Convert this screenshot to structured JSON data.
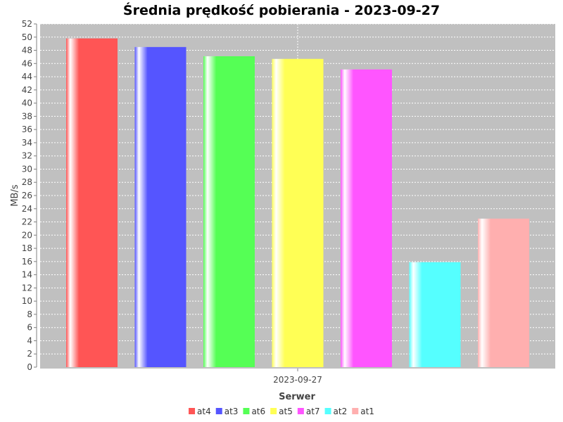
{
  "chart_data": {
    "type": "bar",
    "title": "Średnia prędkość pobierania - 2023-09-27",
    "xlabel": "Serwer",
    "ylabel": "MB/s",
    "categories": [
      "2023-09-27"
    ],
    "ylim": [
      0,
      52
    ],
    "ytick_step": 2,
    "grid": true,
    "legend_position": "bottom",
    "series": [
      {
        "name": "at4",
        "color": "#ff5555",
        "values": [
          49.8
        ]
      },
      {
        "name": "at3",
        "color": "#5555ff",
        "values": [
          48.5
        ]
      },
      {
        "name": "at6",
        "color": "#55ff55",
        "values": [
          47.1
        ]
      },
      {
        "name": "at5",
        "color": "#ffff55",
        "values": [
          46.7
        ]
      },
      {
        "name": "at7",
        "color": "#ff55ff",
        "values": [
          45.1
        ]
      },
      {
        "name": "at2",
        "color": "#55ffff",
        "values": [
          15.9
        ]
      },
      {
        "name": "at1",
        "color": "#ffafaf",
        "values": [
          22.5
        ]
      }
    ]
  }
}
